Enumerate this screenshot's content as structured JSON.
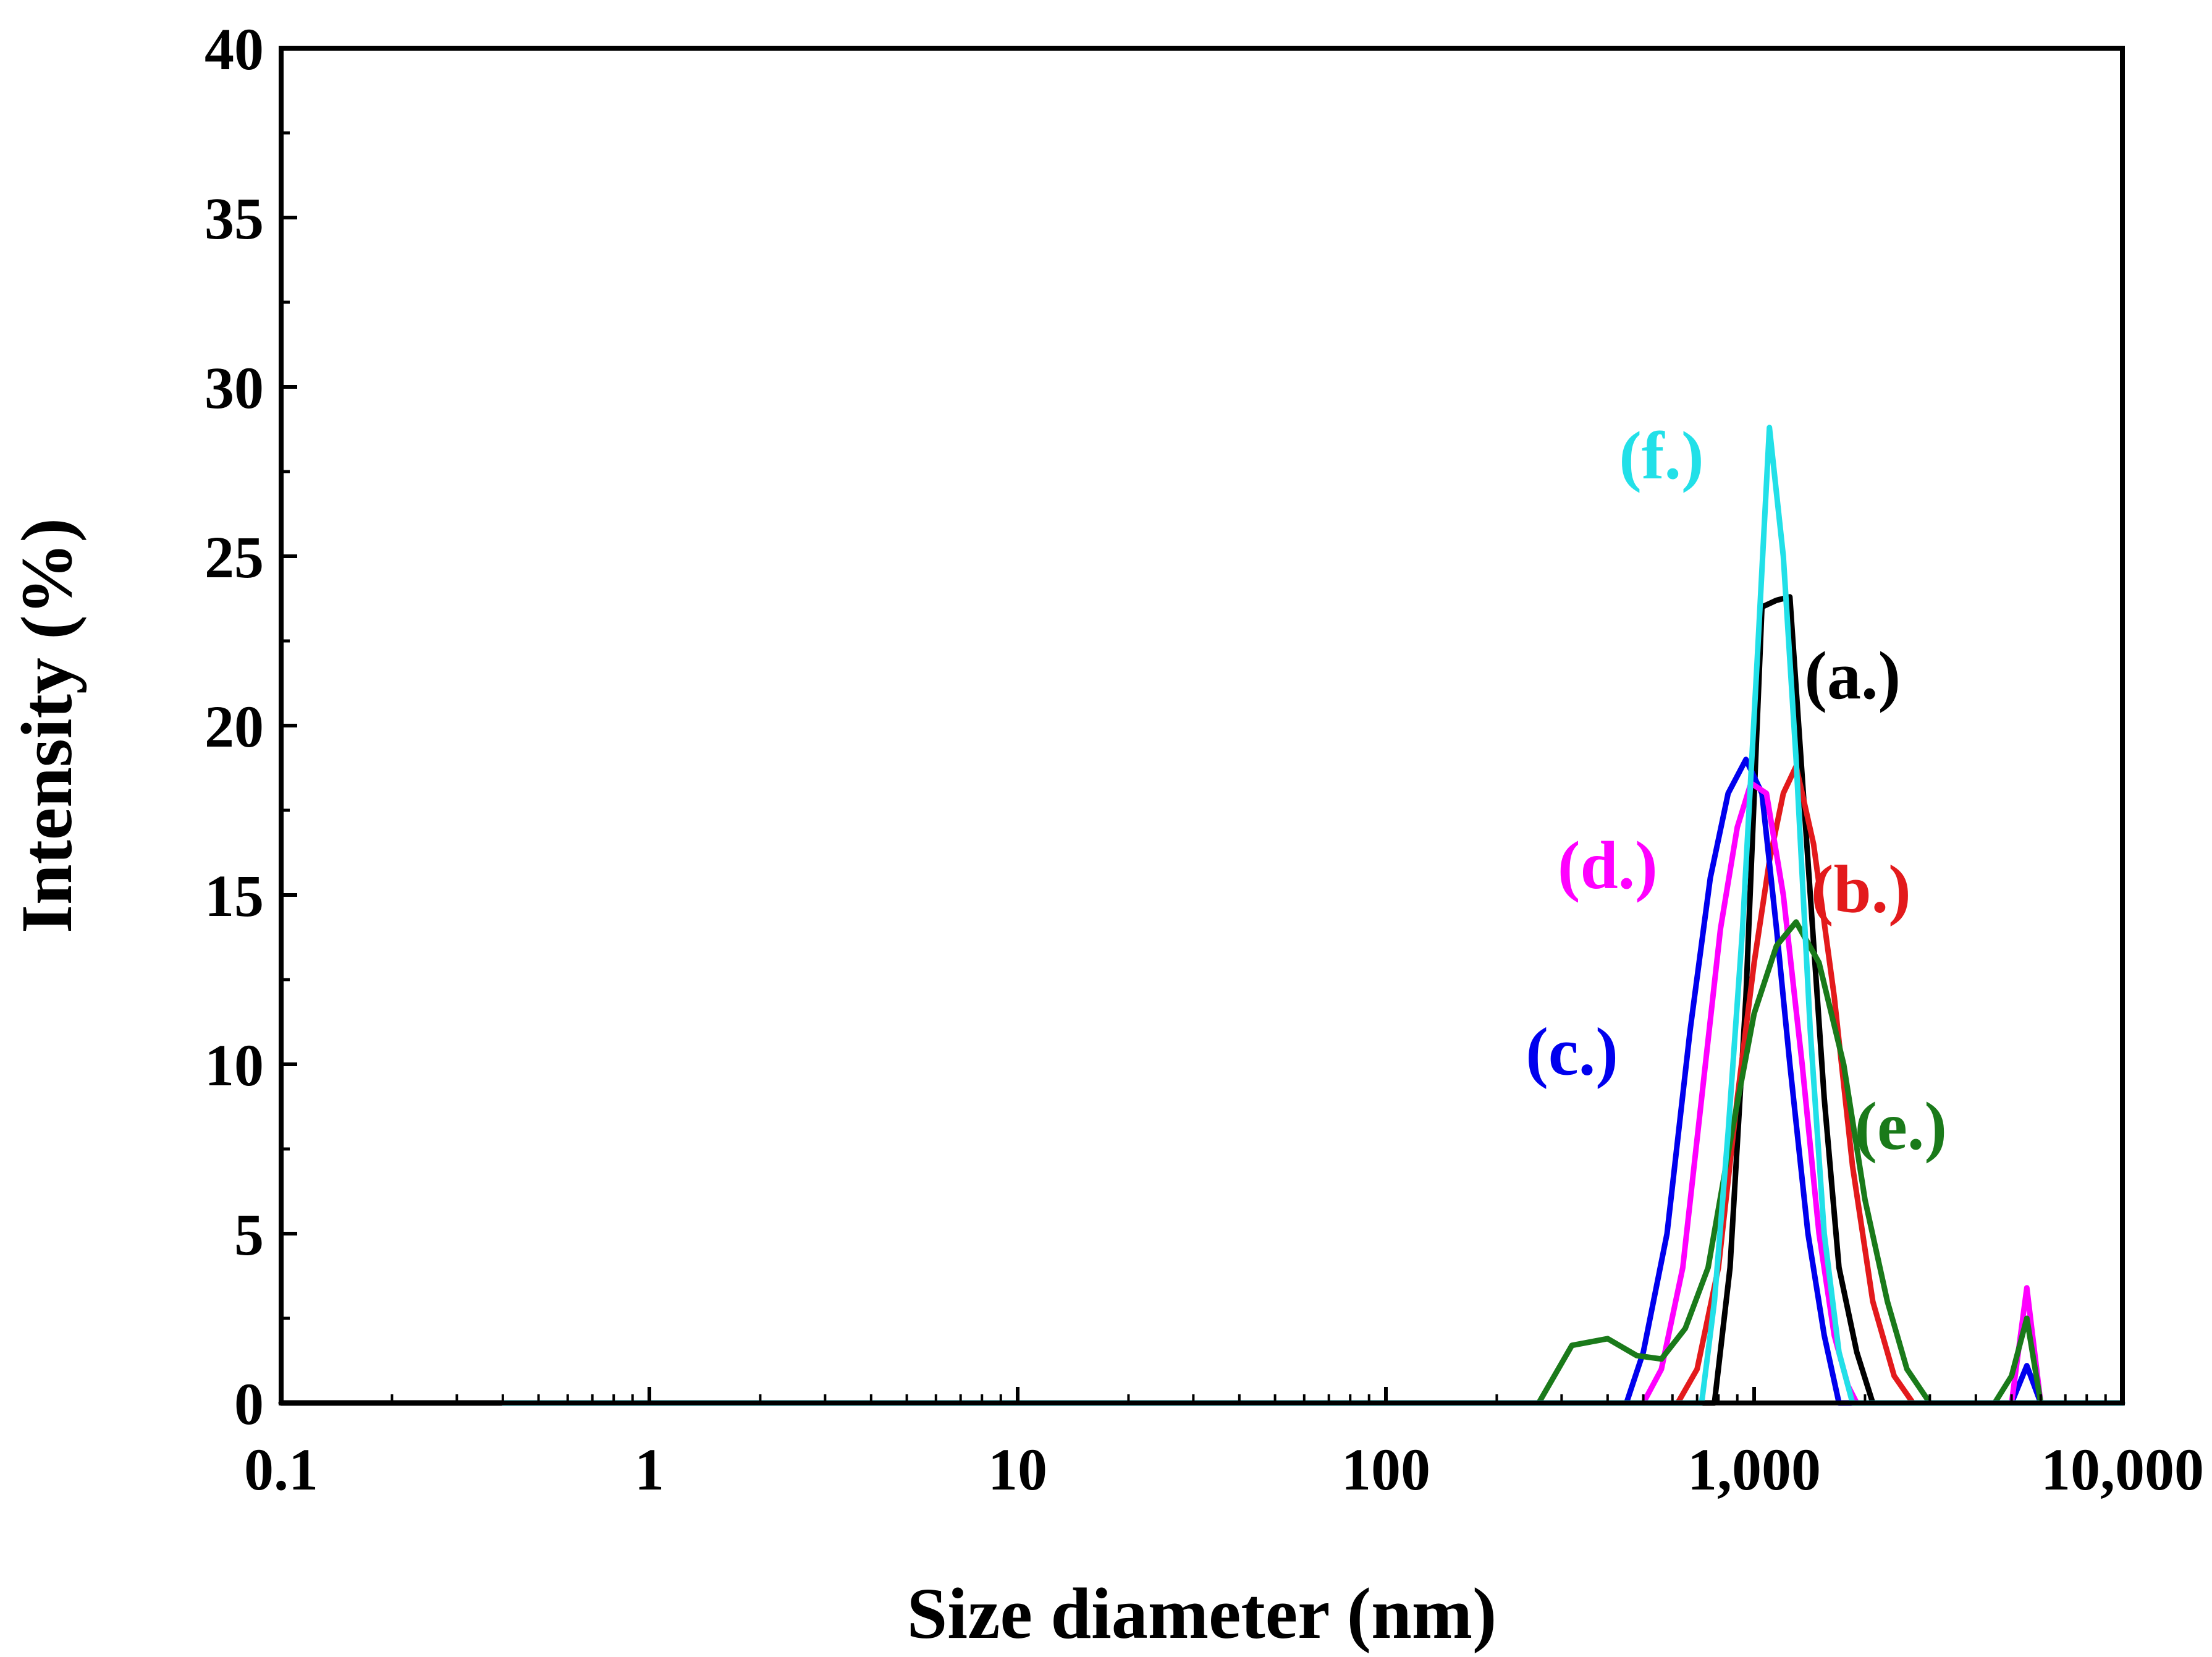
{
  "chart_data": {
    "type": "line",
    "title": "",
    "xlabel": "Size diameter (nm)",
    "ylabel": "Intensity (%)",
    "xscale": "log",
    "xlim": [
      0.1,
      10000
    ],
    "ylim": [
      0,
      40
    ],
    "grid": false,
    "xticks": [
      {
        "value": 0.1,
        "label": "0.1"
      },
      {
        "value": 1,
        "label": "1"
      },
      {
        "value": 10,
        "label": "10"
      },
      {
        "value": 100,
        "label": "100"
      },
      {
        "value": 1000,
        "label": "1,000"
      },
      {
        "value": 10000,
        "label": "10,000"
      }
    ],
    "yticks": [
      {
        "value": 0,
        "label": "0"
      },
      {
        "value": 5,
        "label": "5"
      },
      {
        "value": 10,
        "label": "10"
      },
      {
        "value": 15,
        "label": "15"
      },
      {
        "value": 20,
        "label": "20"
      },
      {
        "value": 25,
        "label": "25"
      },
      {
        "value": 30,
        "label": "30"
      },
      {
        "value": 35,
        "label": "35"
      },
      {
        "value": 40,
        "label": "40"
      }
    ],
    "series": [
      {
        "name": "(a.)",
        "color": "#000000",
        "label_at": [
          1850,
          20.8
        ],
        "points": [
          [
            0.1,
            0
          ],
          [
            700,
            0
          ],
          [
            780,
            0
          ],
          [
            860,
            4
          ],
          [
            950,
            12
          ],
          [
            1050,
            23.5
          ],
          [
            1150,
            23.7
          ],
          [
            1250,
            23.8
          ],
          [
            1400,
            16
          ],
          [
            1550,
            9
          ],
          [
            1700,
            4
          ],
          [
            1900,
            1.5
          ],
          [
            2100,
            0
          ],
          [
            10000,
            0
          ]
        ]
      },
      {
        "name": "(b.)",
        "color": "#e31a1c",
        "label_at": [
          1950,
          14.5
        ],
        "points": [
          [
            0.4,
            0
          ],
          [
            620,
            0
          ],
          [
            700,
            1
          ],
          [
            800,
            4
          ],
          [
            900,
            9
          ],
          [
            1000,
            13
          ],
          [
            1100,
            16
          ],
          [
            1200,
            18
          ],
          [
            1300,
            18.8
          ],
          [
            1450,
            16.5
          ],
          [
            1650,
            12
          ],
          [
            1850,
            7
          ],
          [
            2100,
            3
          ],
          [
            2400,
            0.8
          ],
          [
            2700,
            0
          ],
          [
            10000,
            0
          ]
        ]
      },
      {
        "name": "(c.)",
        "color": "#0000ee",
        "label_at": [
          320,
          9.7
        ],
        "points": [
          [
            0.4,
            0
          ],
          [
            450,
            0
          ],
          [
            500,
            1.5
          ],
          [
            580,
            5
          ],
          [
            670,
            11
          ],
          [
            760,
            15.5
          ],
          [
            850,
            18
          ],
          [
            950,
            19
          ],
          [
            1050,
            18
          ],
          [
            1150,
            14
          ],
          [
            1250,
            10
          ],
          [
            1400,
            5
          ],
          [
            1550,
            2
          ],
          [
            1700,
            0
          ],
          [
            5000,
            0
          ],
          [
            5500,
            1.1
          ],
          [
            6000,
            0
          ],
          [
            10000,
            0
          ]
        ]
      },
      {
        "name": "(d.)",
        "color": "#ff00ff",
        "label_at": [
          400,
          15.2
        ],
        "points": [
          [
            0.4,
            0
          ],
          [
            500,
            0
          ],
          [
            560,
            1
          ],
          [
            640,
            4
          ],
          [
            720,
            9
          ],
          [
            810,
            14
          ],
          [
            900,
            17
          ],
          [
            980,
            18.3
          ],
          [
            1080,
            18
          ],
          [
            1200,
            15
          ],
          [
            1350,
            10
          ],
          [
            1500,
            5
          ],
          [
            1650,
            2
          ],
          [
            1800,
            0.5
          ],
          [
            1900,
            0
          ],
          [
            5000,
            0
          ],
          [
            5500,
            3.4
          ],
          [
            6000,
            0
          ],
          [
            10000,
            0
          ]
        ]
      },
      {
        "name": "(e.)",
        "color": "#1a7a1a",
        "label_at": [
          2500,
          7.5
        ],
        "points": [
          [
            0.4,
            0
          ],
          [
            260,
            0
          ],
          [
            320,
            1.7
          ],
          [
            400,
            1.9
          ],
          [
            480,
            1.4
          ],
          [
            560,
            1.3
          ],
          [
            650,
            2.2
          ],
          [
            750,
            4
          ],
          [
            870,
            8
          ],
          [
            1000,
            11.5
          ],
          [
            1150,
            13.5
          ],
          [
            1300,
            14.2
          ],
          [
            1500,
            13
          ],
          [
            1750,
            10
          ],
          [
            2000,
            6
          ],
          [
            2300,
            3
          ],
          [
            2600,
            1
          ],
          [
            3000,
            0
          ],
          [
            4500,
            0
          ],
          [
            5000,
            0.8
          ],
          [
            5500,
            2.5
          ],
          [
            6000,
            0
          ],
          [
            10000,
            0
          ]
        ]
      },
      {
        "name": "(f.)",
        "color": "#22e0e8",
        "label_at": [
          560,
          27.3
        ],
        "points": [
          [
            0.4,
            0
          ],
          [
            720,
            0
          ],
          [
            780,
            3
          ],
          [
            850,
            8
          ],
          [
            930,
            14
          ],
          [
            1020,
            22
          ],
          [
            1100,
            28.8
          ],
          [
            1200,
            25
          ],
          [
            1300,
            19
          ],
          [
            1420,
            11
          ],
          [
            1550,
            5
          ],
          [
            1700,
            1.5
          ],
          [
            1850,
            0
          ],
          [
            10000,
            0
          ]
        ]
      }
    ]
  }
}
